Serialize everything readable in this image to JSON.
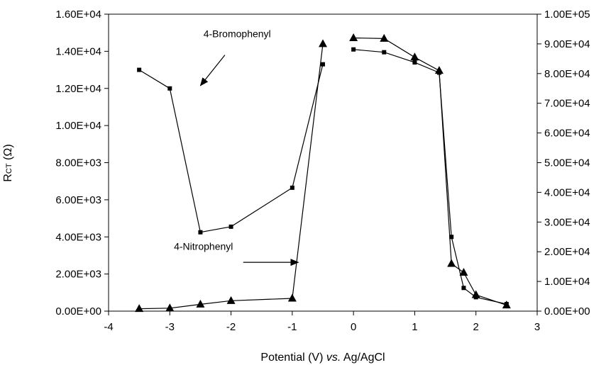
{
  "chart_data": {
    "type": "scatter",
    "title": "",
    "xlabel_parts": [
      "Potential (V) ",
      "vs.",
      " Ag/AgCl"
    ],
    "ylabel_main": "R",
    "ylabel_sub": "CT",
    "ylabel_unit": " (Ω)",
    "xlim": [
      -4,
      3
    ],
    "ylim_left": [
      0,
      16000
    ],
    "ylim_right": [
      0,
      100000
    ],
    "x_ticks": [
      "-4",
      "-3",
      "-2",
      "-1",
      "0",
      "1",
      "2",
      "3"
    ],
    "y_left_ticks": [
      "0.00E+00",
      "2.00E+03",
      "4.00E+03",
      "6.00E+03",
      "8.00E+03",
      "1.00E+04",
      "1.20E+04",
      "1.40E+04",
      "1.60E+04"
    ],
    "y_right_ticks": [
      "0.00E+00",
      "1.00E+04",
      "2.00E+04",
      "3.00E+04",
      "4.00E+04",
      "5.00E+04",
      "6.00E+04",
      "7.00E+04",
      "8.00E+04",
      "9.00E+04",
      "1.00E+05"
    ],
    "legend": "none",
    "grid": false,
    "series": [
      {
        "marker": "square",
        "axis": "left",
        "segments": [
          [
            [
              -3.5,
              13000
            ],
            [
              -3,
              12000
            ],
            [
              -2.5,
              4250
            ],
            [
              -2,
              4550
            ],
            [
              -1,
              6650
            ],
            [
              -0.5,
              13300
            ]
          ],
          [
            [
              0,
              14100
            ],
            [
              0.5,
              13950
            ],
            [
              1,
              13400
            ],
            [
              1.4,
              12850
            ],
            [
              1.6,
              4000
            ],
            [
              1.8,
              1250
            ],
            [
              2,
              750
            ],
            [
              2.5,
              380
            ]
          ]
        ]
      },
      {
        "marker": "triangle",
        "axis": "right",
        "segments": [
          [
            [
              -3.5,
              800
            ],
            [
              -3,
              1000
            ],
            [
              -2.5,
              2300
            ],
            [
              -2,
              3500
            ],
            [
              -1,
              4300
            ],
            [
              -0.5,
              90000
            ]
          ],
          [
            [
              0,
              92000
            ],
            [
              0.5,
              91800
            ],
            [
              1,
              85500
            ],
            [
              1.4,
              81000
            ],
            [
              1.6,
              16000
            ],
            [
              1.8,
              13000
            ],
            [
              2,
              5500
            ],
            [
              2.5,
              2000
            ]
          ]
        ]
      }
    ],
    "annotations": [
      {
        "text": "4-Bromophenyl",
        "x": -1.9,
        "y": 14750,
        "arrow_from": [
          -2.1,
          13800
        ],
        "arrow_to": [
          -2.5,
          12150
        ]
      },
      {
        "text": "4-Nitrophenyl",
        "x": -2.45,
        "y": 3300,
        "arrow_from": [
          -1.8,
          2630
        ],
        "arrow_to": [
          -0.9,
          2630
        ]
      }
    ]
  }
}
